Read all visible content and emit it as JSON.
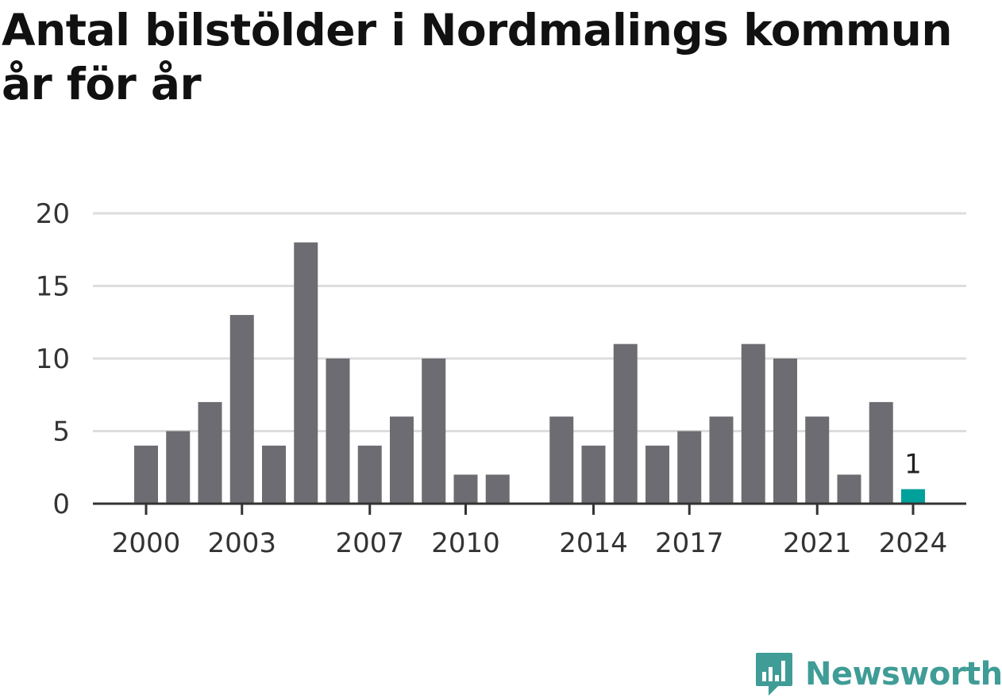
{
  "title": "Antal bilstölder i Nordmalings kommun år för år",
  "brand": {
    "name": "Newsworthy",
    "color": "#3f9c96",
    "icon": "newsworthy-logo-icon"
  },
  "colors": {
    "bar": "#6d6c72",
    "highlight": "#00a19a",
    "grid": "#dddddd",
    "axis": "#333333"
  },
  "chart_data": {
    "type": "bar",
    "title": "Antal bilstölder i Nordmalings kommun år för år",
    "xlabel": "",
    "ylabel": "",
    "ylim": [
      0,
      20
    ],
    "yticks": [
      0,
      5,
      10,
      15,
      20
    ],
    "xticks": [
      2000,
      2003,
      2007,
      2010,
      2014,
      2017,
      2021,
      2024
    ],
    "grid": true,
    "legend": "none",
    "categories": [
      2000,
      2001,
      2002,
      2003,
      2004,
      2005,
      2006,
      2007,
      2008,
      2009,
      2010,
      2011,
      2012,
      2013,
      2014,
      2015,
      2016,
      2017,
      2018,
      2019,
      2020,
      2021,
      2022,
      2023,
      2024
    ],
    "values": [
      4,
      5,
      7,
      13,
      4,
      18,
      10,
      4,
      6,
      10,
      2,
      2,
      0,
      6,
      4,
      11,
      4,
      5,
      6,
      11,
      10,
      6,
      2,
      7,
      1
    ],
    "highlight": {
      "category": 2024,
      "value": 1,
      "label": "1"
    }
  }
}
